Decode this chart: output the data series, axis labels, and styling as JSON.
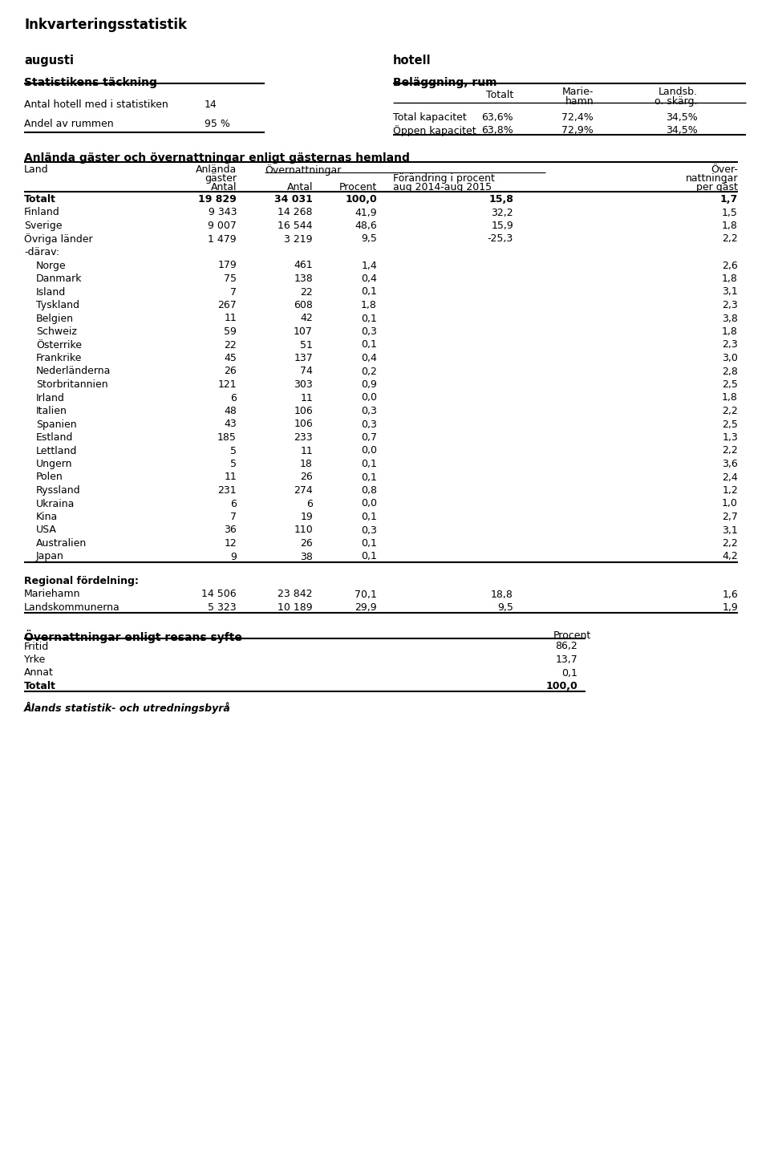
{
  "title": "Inkvarteringsstatistik",
  "left_label": "augusti",
  "right_label": "hotell",
  "section1_title": "Statistikens täckning",
  "section1_rows": [
    [
      "Antal hotell med i statistiken",
      "14"
    ],
    [
      "Andel av rummen",
      "95 %"
    ]
  ],
  "section2_title": "Beläggning, rum",
  "section2_col1": "Totalt",
  "section2_col2a": "Marie-",
  "section2_col2b": "hamn",
  "section2_col3a": "Landsb.",
  "section2_col3b": "o. skärg.",
  "section2_rows": [
    [
      "Total kapacitet",
      "63,6%",
      "72,4%",
      "34,5%"
    ],
    [
      "Öppen kapacitet",
      "63,8%",
      "72,9%",
      "34,5%"
    ]
  ],
  "section3_title": "Anlända gäster och övernattningar enligt gästernas hemland",
  "main_rows": [
    {
      "land": "Totalt",
      "gaster": "19 829",
      "antal": "34 031",
      "procent": "100,0",
      "forandring": "15,8",
      "per_gast": "1,7",
      "bold": true
    },
    {
      "land": "Finland",
      "gaster": "9 343",
      "antal": "14 268",
      "procent": "41,9",
      "forandring": "32,2",
      "per_gast": "1,5",
      "bold": false
    },
    {
      "land": "Sverige",
      "gaster": "9 007",
      "antal": "16 544",
      "procent": "48,6",
      "forandring": "15,9",
      "per_gast": "1,8",
      "bold": false
    },
    {
      "land": "Övriga länder",
      "gaster": "1 479",
      "antal": "3 219",
      "procent": "9,5",
      "forandring": "-25,3",
      "per_gast": "2,2",
      "bold": false
    },
    {
      "land": "-därav:",
      "gaster": "",
      "antal": "",
      "procent": "",
      "forandring": "",
      "per_gast": "",
      "bold": false
    },
    {
      "land": "Norge",
      "gaster": "179",
      "antal": "461",
      "procent": "1,4",
      "forandring": "",
      "per_gast": "2,6",
      "bold": false
    },
    {
      "land": "Danmark",
      "gaster": "75",
      "antal": "138",
      "procent": "0,4",
      "forandring": "",
      "per_gast": "1,8",
      "bold": false
    },
    {
      "land": "Island",
      "gaster": "7",
      "antal": "22",
      "procent": "0,1",
      "forandring": "",
      "per_gast": "3,1",
      "bold": false
    },
    {
      "land": "Tyskland",
      "gaster": "267",
      "antal": "608",
      "procent": "1,8",
      "forandring": "",
      "per_gast": "2,3",
      "bold": false
    },
    {
      "land": "Belgien",
      "gaster": "11",
      "antal": "42",
      "procent": "0,1",
      "forandring": "",
      "per_gast": "3,8",
      "bold": false
    },
    {
      "land": "Schweiz",
      "gaster": "59",
      "antal": "107",
      "procent": "0,3",
      "forandring": "",
      "per_gast": "1,8",
      "bold": false
    },
    {
      "land": "Österrike",
      "gaster": "22",
      "antal": "51",
      "procent": "0,1",
      "forandring": "",
      "per_gast": "2,3",
      "bold": false
    },
    {
      "land": "Frankrike",
      "gaster": "45",
      "antal": "137",
      "procent": "0,4",
      "forandring": "",
      "per_gast": "3,0",
      "bold": false
    },
    {
      "land": "Nederländerna",
      "gaster": "26",
      "antal": "74",
      "procent": "0,2",
      "forandring": "",
      "per_gast": "2,8",
      "bold": false
    },
    {
      "land": "Storbritannien",
      "gaster": "121",
      "antal": "303",
      "procent": "0,9",
      "forandring": "",
      "per_gast": "2,5",
      "bold": false
    },
    {
      "land": "Irland",
      "gaster": "6",
      "antal": "11",
      "procent": "0,0",
      "forandring": "",
      "per_gast": "1,8",
      "bold": false
    },
    {
      "land": "Italien",
      "gaster": "48",
      "antal": "106",
      "procent": "0,3",
      "forandring": "",
      "per_gast": "2,2",
      "bold": false
    },
    {
      "land": "Spanien",
      "gaster": "43",
      "antal": "106",
      "procent": "0,3",
      "forandring": "",
      "per_gast": "2,5",
      "bold": false
    },
    {
      "land": "Estland",
      "gaster": "185",
      "antal": "233",
      "procent": "0,7",
      "forandring": "",
      "per_gast": "1,3",
      "bold": false
    },
    {
      "land": "Lettland",
      "gaster": "5",
      "antal": "11",
      "procent": "0,0",
      "forandring": "",
      "per_gast": "2,2",
      "bold": false
    },
    {
      "land": "Ungern",
      "gaster": "5",
      "antal": "18",
      "procent": "0,1",
      "forandring": "",
      "per_gast": "3,6",
      "bold": false
    },
    {
      "land": "Polen",
      "gaster": "11",
      "antal": "26",
      "procent": "0,1",
      "forandring": "",
      "per_gast": "2,4",
      "bold": false
    },
    {
      "land": "Ryssland",
      "gaster": "231",
      "antal": "274",
      "procent": "0,8",
      "forandring": "",
      "per_gast": "1,2",
      "bold": false
    },
    {
      "land": "Ukraina",
      "gaster": "6",
      "antal": "6",
      "procent": "0,0",
      "forandring": "",
      "per_gast": "1,0",
      "bold": false
    },
    {
      "land": "Kina",
      "gaster": "7",
      "antal": "19",
      "procent": "0,1",
      "forandring": "",
      "per_gast": "2,7",
      "bold": false
    },
    {
      "land": "USA",
      "gaster": "36",
      "antal": "110",
      "procent": "0,3",
      "forandring": "",
      "per_gast": "3,1",
      "bold": false
    },
    {
      "land": "Australien",
      "gaster": "12",
      "antal": "26",
      "procent": "0,1",
      "forandring": "",
      "per_gast": "2,2",
      "bold": false
    },
    {
      "land": "Japan",
      "gaster": "9",
      "antal": "38",
      "procent": "0,1",
      "forandring": "",
      "per_gast": "4,2",
      "bold": false
    }
  ],
  "regional_title": "Regional fördelning:",
  "regional_rows": [
    {
      "land": "Mariehamn",
      "gaster": "14 506",
      "antal": "23 842",
      "procent": "70,1",
      "forandring": "18,8",
      "per_gast": "1,6"
    },
    {
      "land": "Landskommunerna",
      "gaster": "5 323",
      "antal": "10 189",
      "procent": "29,9",
      "forandring": "9,5",
      "per_gast": "1,9"
    }
  ],
  "section4_title": "Övernattningar enligt resans syfte",
  "section4_col": "Procent",
  "section4_rows": [
    {
      "label": "Fritid",
      "value": "86,2",
      "bold": false
    },
    {
      "label": "Yrke",
      "value": "13,7",
      "bold": false
    },
    {
      "label": "Annat",
      "value": "0,1",
      "bold": false
    },
    {
      "label": "Totalt",
      "value": "100,0",
      "bold": true
    }
  ],
  "footer": "Ålands statistik- och utredningsbyrå",
  "bg_color": "#ffffff"
}
